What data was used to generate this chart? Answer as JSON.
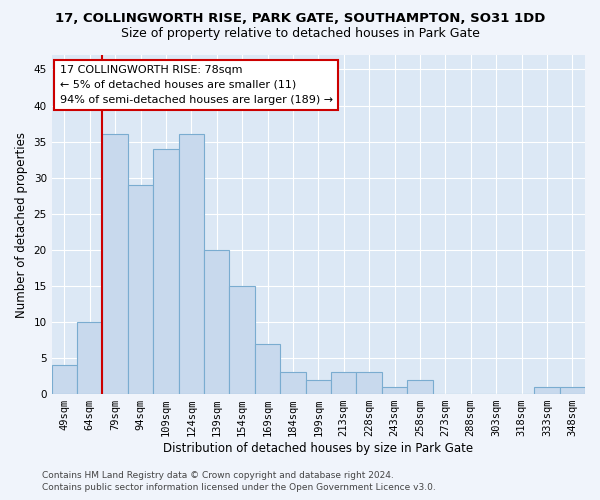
{
  "title1": "17, COLLINGWORTH RISE, PARK GATE, SOUTHAMPTON, SO31 1DD",
  "title2": "Size of property relative to detached houses in Park Gate",
  "xlabel": "Distribution of detached houses by size in Park Gate",
  "ylabel": "Number of detached properties",
  "categories": [
    "49sqm",
    "64sqm",
    "79sqm",
    "94sqm",
    "109sqm",
    "124sqm",
    "139sqm",
    "154sqm",
    "169sqm",
    "184sqm",
    "199sqm",
    "213sqm",
    "228sqm",
    "243sqm",
    "258sqm",
    "273sqm",
    "288sqm",
    "303sqm",
    "318sqm",
    "333sqm",
    "348sqm"
  ],
  "values": [
    4,
    10,
    36,
    29,
    34,
    36,
    20,
    15,
    7,
    3,
    2,
    3,
    3,
    1,
    2,
    0,
    0,
    0,
    0,
    1,
    1
  ],
  "bar_color": "#c8d9ed",
  "bar_edge_color": "#7aacd0",
  "annotation_line1": "17 COLLINGWORTH RISE: 78sqm",
  "annotation_line2": "← 5% of detached houses are smaller (11)",
  "annotation_line3": "94% of semi-detached houses are larger (189) →",
  "annotation_box_facecolor": "#ffffff",
  "annotation_box_edgecolor": "#cc0000",
  "property_line_color": "#cc0000",
  "ylim": [
    0,
    47
  ],
  "yticks": [
    0,
    5,
    10,
    15,
    20,
    25,
    30,
    35,
    40,
    45
  ],
  "footer1": "Contains HM Land Registry data © Crown copyright and database right 2024.",
  "footer2": "Contains public sector information licensed under the Open Government Licence v3.0.",
  "fig_bg_color": "#f0f4fb",
  "plot_bg_color": "#dce8f5",
  "grid_color": "#ffffff",
  "title1_fontsize": 9.5,
  "title2_fontsize": 9,
  "xlabel_fontsize": 8.5,
  "ylabel_fontsize": 8.5,
  "tick_fontsize": 7.5,
  "annotation_fontsize": 8,
  "footer_fontsize": 6.5
}
